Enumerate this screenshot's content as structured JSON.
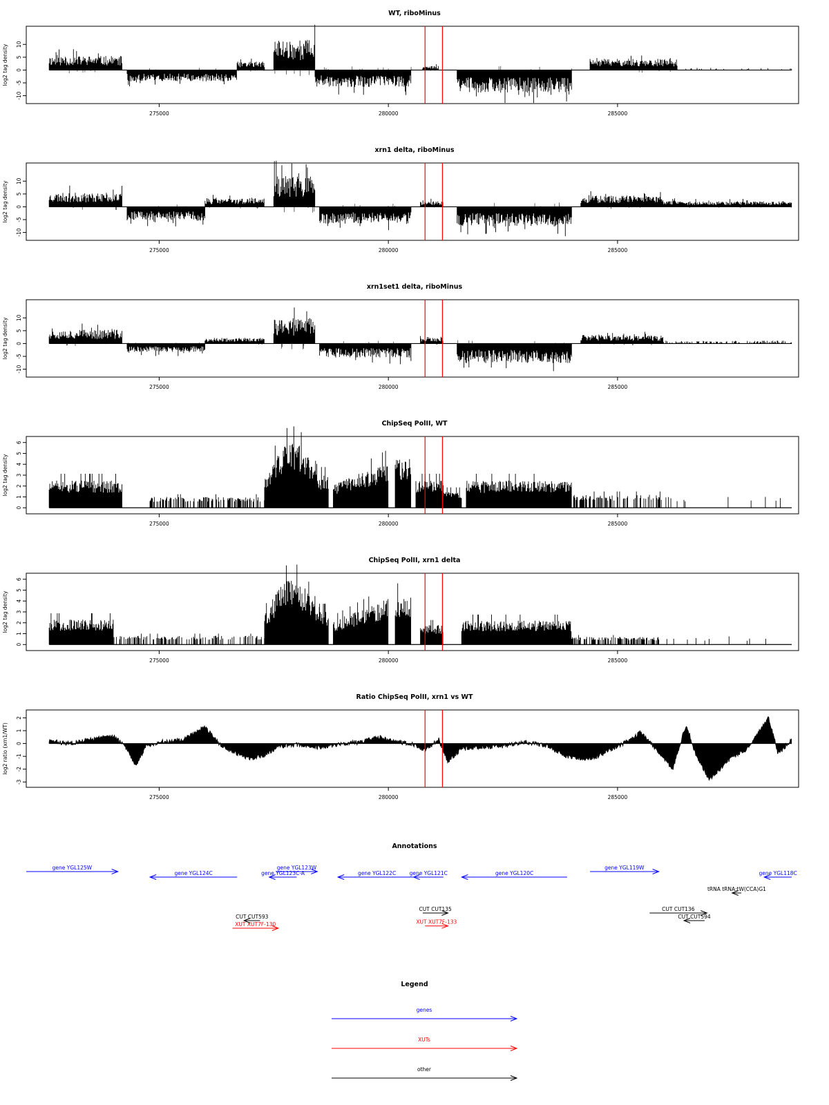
{
  "colors": {
    "genes": "#0000ff",
    "xuts": "#ff0000",
    "other": "#000000",
    "marker": "#ff0000",
    "data": "#000000"
  },
  "x_range": [
    272100,
    288950
  ],
  "x_ticks": [
    {
      "value": 275000,
      "label": "275000"
    },
    {
      "value": 280000,
      "label": "280000"
    },
    {
      "value": 285000,
      "label": "285000"
    }
  ],
  "marker_lines": [
    280800,
    281180
  ],
  "chart_data": [
    {
      "type": "bar",
      "title": "WT, riboMinus",
      "ylabel": "log2 tag density",
      "ylim": [
        -12,
        16
      ],
      "yticks": [
        {
          "value": 10,
          "label": "10"
        },
        {
          "value": 5,
          "label": "5"
        },
        {
          "value": 0,
          "label": "0"
        },
        {
          "value": -5,
          "label": "-5"
        },
        {
          "value": -10,
          "label": "-10"
        }
      ],
      "style": "stranded",
      "seed": 11,
      "profile": [
        {
          "range": [
            272600,
            274200
          ],
          "strand": "+",
          "level": 5
        },
        {
          "range": [
            274300,
            276700
          ],
          "strand": "-",
          "level": 4
        },
        {
          "range": [
            276700,
            277300
          ],
          "strand": "+",
          "level": 3
        },
        {
          "range": [
            277500,
            278400
          ],
          "strand": "+",
          "level": 11
        },
        {
          "range": [
            278400,
            279500
          ],
          "strand": "-",
          "level": 6
        },
        {
          "range": [
            279500,
            280500
          ],
          "strand": "-",
          "level": 6
        },
        {
          "range": [
            280750,
            281100
          ],
          "strand": "+",
          "level": 1.5
        },
        {
          "range": [
            281500,
            284000
          ],
          "strand": "-",
          "level": 8
        },
        {
          "range": [
            284400,
            286300
          ],
          "strand": "+",
          "level": 4
        },
        {
          "range": [
            286300,
            288800
          ],
          "strand": "+",
          "level": 0.8,
          "sparse": 0.08
        }
      ]
    },
    {
      "type": "bar",
      "title": "xrn1 delta, riboMinus",
      "ylabel": "log2 tag density",
      "ylim": [
        -12,
        16
      ],
      "yticks": [
        {
          "value": 10,
          "label": "10"
        },
        {
          "value": 5,
          "label": "5"
        },
        {
          "value": 0,
          "label": "0"
        },
        {
          "value": -5,
          "label": "-5"
        },
        {
          "value": -10,
          "label": "-10"
        }
      ],
      "style": "stranded",
      "seed": 23,
      "profile": [
        {
          "range": [
            272600,
            274200
          ],
          "strand": "+",
          "level": 5
        },
        {
          "range": [
            274300,
            276000
          ],
          "strand": "-",
          "level": 5
        },
        {
          "range": [
            276000,
            277300
          ],
          "strand": "+",
          "level": 3
        },
        {
          "range": [
            277500,
            278400
          ],
          "strand": "+",
          "level": 11
        },
        {
          "range": [
            278500,
            280500
          ],
          "strand": "-",
          "level": 6
        },
        {
          "range": [
            280700,
            281200
          ],
          "strand": "+",
          "level": 2
        },
        {
          "range": [
            281500,
            284000
          ],
          "strand": "-",
          "level": 7
        },
        {
          "range": [
            284200,
            286000
          ],
          "strand": "+",
          "level": 4
        },
        {
          "range": [
            286000,
            288800
          ],
          "strand": "+",
          "level": 2
        }
      ]
    },
    {
      "type": "bar",
      "title": "xrn1set1 delta, riboMinus",
      "ylabel": "log2 tag density",
      "ylim": [
        -12,
        16
      ],
      "yticks": [
        {
          "value": 10,
          "label": "10"
        },
        {
          "value": 5,
          "label": "5"
        },
        {
          "value": 0,
          "label": "0"
        },
        {
          "value": -5,
          "label": "-5"
        },
        {
          "value": -10,
          "label": "-10"
        }
      ],
      "style": "stranded",
      "seed": 37,
      "profile": [
        {
          "range": [
            272600,
            274200
          ],
          "strand": "+",
          "level": 5
        },
        {
          "range": [
            274300,
            276000
          ],
          "strand": "-",
          "level": 3
        },
        {
          "range": [
            276000,
            277300
          ],
          "strand": "+",
          "level": 2
        },
        {
          "range": [
            277500,
            278400
          ],
          "strand": "+",
          "level": 9
        },
        {
          "range": [
            278500,
            280500
          ],
          "strand": "-",
          "level": 5
        },
        {
          "range": [
            280700,
            281200
          ],
          "strand": "+",
          "level": 2
        },
        {
          "range": [
            281500,
            284000
          ],
          "strand": "-",
          "level": 7
        },
        {
          "range": [
            284200,
            286000
          ],
          "strand": "+",
          "level": 3
        },
        {
          "range": [
            286000,
            288800
          ],
          "strand": "+",
          "level": 1,
          "sparse": 0.3
        }
      ]
    },
    {
      "type": "bar",
      "title": "ChipSeq PolII, WT",
      "ylabel": "log2 tag density",
      "ylim": [
        -0.3,
        6.3
      ],
      "yticks": [
        {
          "value": 0,
          "label": "0"
        },
        {
          "value": 1,
          "label": "1"
        },
        {
          "value": 2,
          "label": "2"
        },
        {
          "value": 3,
          "label": "3"
        },
        {
          "value": 4,
          "label": "4"
        },
        {
          "value": 5,
          "label": "5"
        },
        {
          "value": 6,
          "label": "6"
        }
      ],
      "style": "density",
      "seed": 51,
      "profile": [
        {
          "range": [
            272600,
            274200
          ],
          "level": 2.5
        },
        {
          "range": [
            274800,
            277300
          ],
          "level": 1,
          "sparse": 0.45
        },
        {
          "range": [
            277300,
            278500
          ],
          "level": 6,
          "shape": "dome"
        },
        {
          "range": [
            278500,
            278700
          ],
          "level": 3
        },
        {
          "range": [
            278800,
            280000
          ],
          "level": 4.3,
          "shape": "ramp"
        },
        {
          "range": [
            280150,
            280500
          ],
          "level": 4.5
        },
        {
          "range": [
            280600,
            281200
          ],
          "level": 2.5
        },
        {
          "range": [
            281200,
            281600
          ],
          "level": 1.5
        },
        {
          "range": [
            281700,
            284000
          ],
          "level": 2.5
        },
        {
          "range": [
            284000,
            286000
          ],
          "level": 1.2,
          "sparse": 0.5
        },
        {
          "range": [
            286000,
            288800
          ],
          "level": 1,
          "sparse": 0.05
        }
      ]
    },
    {
      "type": "bar",
      "title": "ChipSeq PolII, xrn1 delta",
      "ylabel": "log2 tag density",
      "ylim": [
        -0.3,
        6.3
      ],
      "yticks": [
        {
          "value": 0,
          "label": "0"
        },
        {
          "value": 1,
          "label": "1"
        },
        {
          "value": 2,
          "label": "2"
        },
        {
          "value": 3,
          "label": "3"
        },
        {
          "value": 4,
          "label": "4"
        },
        {
          "value": 5,
          "label": "5"
        },
        {
          "value": 6,
          "label": "6"
        }
      ],
      "style": "density",
      "seed": 67,
      "profile": [
        {
          "range": [
            272600,
            274000
          ],
          "level": 2.3
        },
        {
          "range": [
            274000,
            277300
          ],
          "level": 0.8,
          "sparse": 0.4
        },
        {
          "range": [
            277300,
            278500
          ],
          "level": 6,
          "shape": "dome"
        },
        {
          "range": [
            278500,
            278700
          ],
          "level": 3
        },
        {
          "range": [
            278800,
            280000
          ],
          "level": 4.3,
          "shape": "ramp"
        },
        {
          "range": [
            280150,
            280500
          ],
          "level": 4.5
        },
        {
          "range": [
            280700,
            281200
          ],
          "level": 1.8
        },
        {
          "range": [
            281600,
            284000
          ],
          "level": 2.2
        },
        {
          "range": [
            284000,
            285900
          ],
          "level": 0.7,
          "sparse": 0.5
        },
        {
          "range": [
            285900,
            288800
          ],
          "level": 0.6,
          "sparse": 0.04
        }
      ]
    },
    {
      "type": "area",
      "title": "Ratio ChipSeq PolII, xrn1 vs WT",
      "ylabel": "log2 ratio (xrn1/WT)",
      "ylim": [
        -3.2,
        2.4
      ],
      "yticks": [
        {
          "value": 2,
          "label": "2"
        },
        {
          "value": 1,
          "label": "1"
        },
        {
          "value": 0,
          "label": "0"
        },
        {
          "value": -1,
          "label": "-1"
        },
        {
          "value": -2,
          "label": "-2"
        },
        {
          "value": -3,
          "label": "-3"
        }
      ],
      "style": "ratio",
      "seed": 83,
      "x": [
        272600,
        273000,
        273500,
        274000,
        274300,
        274500,
        274700,
        275000,
        275500,
        276000,
        276300,
        276600,
        277000,
        277300,
        277600,
        278000,
        278500,
        279000,
        279400,
        279800,
        280200,
        280500,
        280800,
        281100,
        281300,
        281600,
        282000,
        282500,
        283000,
        283500,
        283800,
        284200,
        284500,
        285000,
        285300,
        285500,
        285800,
        286200,
        286500,
        286700,
        287000,
        287500,
        287800,
        288100,
        288300,
        288500,
        288800
      ],
      "y": [
        0.2,
        0,
        0.3,
        0.6,
        -0.4,
        -1.8,
        -0.2,
        0.1,
        0.3,
        1.3,
        0,
        -0.6,
        -1.2,
        -0.9,
        -0.2,
        -0.1,
        -0.3,
        0,
        0.1,
        0.5,
        0.1,
        0,
        -0.5,
        0.3,
        -1.4,
        -0.4,
        -0.3,
        -0.2,
        0.1,
        -0.2,
        -0.9,
        -1.2,
        -1.1,
        -0.2,
        0.3,
        0.9,
        -0.3,
        -2.0,
        1.5,
        -0.8,
        -2.8,
        -1.0,
        -0.5,
        1.0,
        2.0,
        -0.8,
        0.3
      ]
    }
  ],
  "annotations": {
    "title": "Annotations",
    "features": [
      {
        "label": "gene YGL125W",
        "type": "genes",
        "start": 272100,
        "end": 274100,
        "strand": "+",
        "row": 0
      },
      {
        "label": "gene YGL124C",
        "type": "genes",
        "start": 274800,
        "end": 276700,
        "strand": "-",
        "row": 1
      },
      {
        "label": "gene YGL123W",
        "type": "genes",
        "start": 277550,
        "end": 278450,
        "strand": "+",
        "row": 0
      },
      {
        "label": "gene YGL123C-A",
        "type": "genes",
        "start": 277400,
        "end": 278000,
        "strand": "-",
        "row": 1
      },
      {
        "label": "gene YGL122C",
        "type": "genes",
        "start": 278900,
        "end": 280600,
        "strand": "-",
        "row": 1
      },
      {
        "label": "gene YGL121C",
        "type": "genes",
        "start": 280550,
        "end": 281200,
        "strand": "-",
        "row": 1
      },
      {
        "label": "gene YGL120C",
        "type": "genes",
        "start": 281600,
        "end": 283900,
        "strand": "-",
        "row": 1
      },
      {
        "label": "gene YGL119W",
        "type": "genes",
        "start": 284400,
        "end": 285900,
        "strand": "+",
        "row": 0
      },
      {
        "label": "gene YGL118C",
        "type": "genes",
        "start": 288200,
        "end": 288800,
        "strand": "-",
        "row": 1
      },
      {
        "label": "tRNA tRNA:tW(CCA)G1",
        "type": "other",
        "start": 287500,
        "end": 287700,
        "strand": "-",
        "row": 2
      },
      {
        "label": "CUT CUT593",
        "type": "other",
        "start": 276850,
        "end": 277200,
        "strand": "-",
        "row": 4
      },
      {
        "label": "XUT XUT7F-130",
        "type": "xuts",
        "start": 276600,
        "end": 277600,
        "strand": "+",
        "row": 5
      },
      {
        "label": "CUT CUT135",
        "type": "other",
        "start": 280750,
        "end": 281300,
        "strand": "+",
        "row": 3
      },
      {
        "label": "XUT XUT7F-133",
        "type": "xuts",
        "start": 280800,
        "end": 281300,
        "strand": "+",
        "row": 4.7
      },
      {
        "label": "CUT CUT136",
        "type": "other",
        "start": 285700,
        "end": 286950,
        "strand": "+",
        "row": 3
      },
      {
        "label": "CUT CUT594",
        "type": "other",
        "start": 286450,
        "end": 286900,
        "strand": "-",
        "row": 4
      }
    ]
  },
  "legend": {
    "title": "Legend",
    "items": [
      {
        "label": "genes",
        "type": "genes"
      },
      {
        "label": "XUTs",
        "type": "xuts"
      },
      {
        "label": "other",
        "type": "other"
      }
    ]
  }
}
